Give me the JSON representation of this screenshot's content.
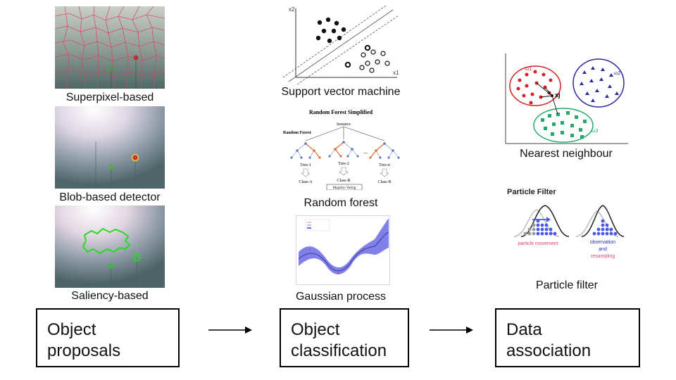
{
  "object_proposals": {
    "examples": [
      {
        "caption": "Superpixel-based"
      },
      {
        "caption": "Blob-based detector"
      },
      {
        "caption": "Saliency-based"
      }
    ],
    "stage_label_line1": "Object",
    "stage_label_line2": "proposals"
  },
  "object_classification": {
    "examples": [
      {
        "caption": "Support vector machine",
        "axis_y": "x2",
        "axis_x": "x1"
      },
      {
        "caption": "Random forest",
        "figure_title": "Random Forest Simplified",
        "instance_label": "Instance",
        "forest_label": "Random Forest",
        "trees": [
          "Tree-1",
          "Tree-2",
          "Tree-n"
        ],
        "classes": [
          "Class-A",
          "Class-B",
          "Class-B"
        ],
        "ellipsis": "...",
        "vote_label": "Majority-Voting"
      },
      {
        "caption": "Gaussian process"
      }
    ],
    "stage_label_line1": "Object",
    "stage_label_line2": "classification"
  },
  "data_association": {
    "examples": [
      {
        "caption": "Nearest neighbour",
        "labels": [
          "ω1",
          "ω2",
          "ω3",
          "xj"
        ]
      },
      {
        "caption": "Particle filter",
        "figure_title": "Particle Filter",
        "movement_label": "particle movement",
        "observation_label": "observation",
        "and_label": "and",
        "resampling_label": "resampling"
      }
    ],
    "stage_label_line1": "Data",
    "stage_label_line2": "association"
  },
  "colors": {
    "arrow": "#000000",
    "box_border": "#000000",
    "knn_red": "#d32020",
    "knn_blue": "#2a2aa0",
    "knn_green": "#22aa66",
    "gp_band": "#6a6ae8",
    "pf_blue": "#4a58e8",
    "pf_pink": "#e0407a",
    "contour_green": "#22dd22",
    "superpixel_lines": "#e04060"
  }
}
